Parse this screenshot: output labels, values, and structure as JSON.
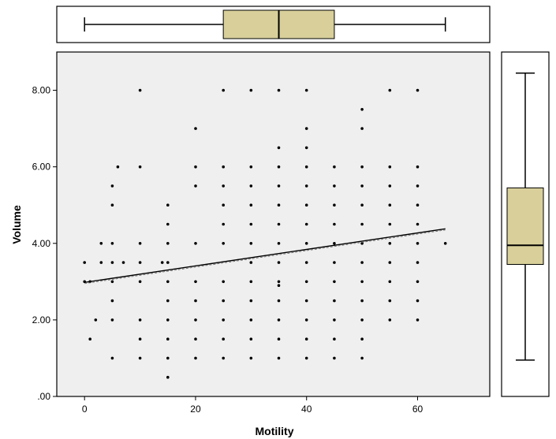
{
  "chart_data": {
    "type": "scatter",
    "xlabel": "Motility",
    "ylabel": "Volume",
    "xlim": [
      -5,
      73
    ],
    "ylim": [
      0,
      9
    ],
    "x_ticks": [
      {
        "value": 0,
        "label": "0"
      },
      {
        "value": 20,
        "label": "20"
      },
      {
        "value": 40,
        "label": "40"
      },
      {
        "value": 60,
        "label": "60"
      }
    ],
    "y_ticks": [
      {
        "value": 0,
        "label": ".00"
      },
      {
        "value": 2,
        "label": "2.00"
      },
      {
        "value": 4,
        "label": "4.00"
      },
      {
        "value": 6,
        "label": "6.00"
      },
      {
        "value": 8,
        "label": "8.00"
      }
    ],
    "points": [
      [
        0,
        3.5
      ],
      [
        0,
        3
      ],
      [
        1,
        3
      ],
      [
        1,
        1.5
      ],
      [
        2,
        2
      ],
      [
        3,
        3.5
      ],
      [
        3,
        4
      ],
      [
        5,
        1
      ],
      [
        5,
        2
      ],
      [
        5,
        2.5
      ],
      [
        5,
        3
      ],
      [
        5,
        3.5
      ],
      [
        5,
        4
      ],
      [
        5,
        5
      ],
      [
        5,
        5.5
      ],
      [
        6,
        6
      ],
      [
        7,
        3.5
      ],
      [
        10,
        8
      ],
      [
        10,
        6
      ],
      [
        10,
        4
      ],
      [
        10,
        3.5
      ],
      [
        10,
        3
      ],
      [
        10,
        2
      ],
      [
        10,
        1.5
      ],
      [
        10,
        1
      ],
      [
        14,
        3.5
      ],
      [
        15,
        5
      ],
      [
        15,
        4.5
      ],
      [
        15,
        4
      ],
      [
        15,
        3.5
      ],
      [
        15,
        3
      ],
      [
        15,
        2.5
      ],
      [
        15,
        2
      ],
      [
        15,
        1.5
      ],
      [
        15,
        1
      ],
      [
        15,
        0.5
      ],
      [
        20,
        7
      ],
      [
        20,
        6
      ],
      [
        20,
        5.5
      ],
      [
        20,
        4
      ],
      [
        20,
        3
      ],
      [
        20,
        2.5
      ],
      [
        20,
        2
      ],
      [
        20,
        1.5
      ],
      [
        20,
        1
      ],
      [
        25,
        8
      ],
      [
        25,
        6
      ],
      [
        25,
        5.5
      ],
      [
        25,
        5
      ],
      [
        25,
        4.5
      ],
      [
        25,
        4
      ],
      [
        25,
        3
      ],
      [
        25,
        2.5
      ],
      [
        25,
        2
      ],
      [
        25,
        1.5
      ],
      [
        25,
        1
      ],
      [
        30,
        8
      ],
      [
        30,
        6
      ],
      [
        30,
        5.5
      ],
      [
        30,
        5
      ],
      [
        30,
        4.5
      ],
      [
        30,
        4
      ],
      [
        30,
        3.5
      ],
      [
        30,
        3
      ],
      [
        30,
        2.5
      ],
      [
        30,
        2
      ],
      [
        30,
        1.5
      ],
      [
        30,
        1
      ],
      [
        35,
        8
      ],
      [
        35,
        6.5
      ],
      [
        35,
        6
      ],
      [
        35,
        5.5
      ],
      [
        35,
        5
      ],
      [
        35,
        4.5
      ],
      [
        35,
        4
      ],
      [
        35,
        3.5
      ],
      [
        35,
        3
      ],
      [
        35,
        2.9
      ],
      [
        35,
        2.5
      ],
      [
        35,
        2
      ],
      [
        35,
        1.5
      ],
      [
        35,
        1
      ],
      [
        40,
        8
      ],
      [
        40,
        7
      ],
      [
        40,
        6.5
      ],
      [
        40,
        6
      ],
      [
        40,
        5.5
      ],
      [
        40,
        5
      ],
      [
        40,
        4.5
      ],
      [
        40,
        4
      ],
      [
        40,
        3.5
      ],
      [
        40,
        3
      ],
      [
        40,
        2.5
      ],
      [
        40,
        2
      ],
      [
        40,
        1.5
      ],
      [
        40,
        1
      ],
      [
        45,
        6
      ],
      [
        45,
        5.5
      ],
      [
        45,
        5
      ],
      [
        45,
        4.5
      ],
      [
        45,
        4
      ],
      [
        45,
        3.5
      ],
      [
        45,
        3
      ],
      [
        45,
        2.5
      ],
      [
        45,
        2
      ],
      [
        45,
        1.5
      ],
      [
        45,
        1
      ],
      [
        50,
        7.5
      ],
      [
        50,
        7
      ],
      [
        50,
        6
      ],
      [
        50,
        5.5
      ],
      [
        50,
        5
      ],
      [
        50,
        4.5
      ],
      [
        50,
        4
      ],
      [
        50,
        3.5
      ],
      [
        50,
        3
      ],
      [
        50,
        2.5
      ],
      [
        50,
        2
      ],
      [
        50,
        1.5
      ],
      [
        50,
        1
      ],
      [
        55,
        8
      ],
      [
        55,
        6
      ],
      [
        55,
        5.5
      ],
      [
        55,
        5
      ],
      [
        55,
        4.5
      ],
      [
        55,
        4
      ],
      [
        55,
        3.5
      ],
      [
        55,
        3
      ],
      [
        55,
        2.5
      ],
      [
        55,
        2
      ],
      [
        60,
        8
      ],
      [
        60,
        6
      ],
      [
        60,
        5.5
      ],
      [
        60,
        5
      ],
      [
        60,
        4.5
      ],
      [
        60,
        4
      ],
      [
        60,
        3.5
      ],
      [
        60,
        3
      ],
      [
        60,
        2.5
      ],
      [
        60,
        2
      ],
      [
        65,
        4
      ]
    ],
    "fit_line": {
      "x": [
        0,
        65
      ],
      "y": [
        2.98,
        4.38
      ]
    },
    "boxplot_x": {
      "min": 0,
      "q1": 25,
      "median": 35,
      "q3": 45,
      "max": 65
    },
    "boxplot_y": {
      "min": 0.95,
      "q1": 3.45,
      "median": 3.95,
      "q3": 5.45,
      "max": 8.45
    },
    "colors": {
      "plot_background": "#efefef",
      "box_fill": "#d8cf9a",
      "point": "#000000",
      "frame": "#000000"
    }
  }
}
